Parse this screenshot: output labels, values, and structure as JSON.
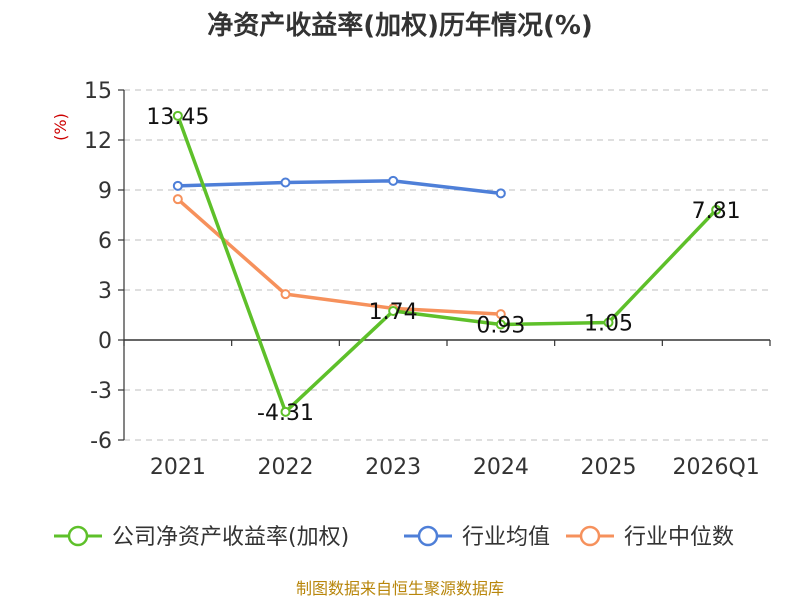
{
  "chart_data": {
    "type": "line",
    "title": "净资产收益率(加权)历年情况(%)",
    "ylabel": "(%)",
    "categories": [
      "2021",
      "2022",
      "2023",
      "2024",
      "2025",
      "2026Q1"
    ],
    "ylim": [
      -6,
      15
    ],
    "yticks": [
      15,
      12,
      9,
      6,
      3,
      0,
      -3,
      -6
    ],
    "grid": true,
    "legend_position": "bottom",
    "series": [
      {
        "name": "公司净资产收益率(加权)",
        "color": "#5ec02a",
        "values": [
          13.45,
          -4.31,
          1.74,
          0.93,
          1.05,
          7.81
        ],
        "labels": [
          "13.45",
          "-4.31",
          "1.74",
          "0.93",
          "1.05",
          "7.81"
        ]
      },
      {
        "name": "行业均值",
        "color": "#4e7fd8",
        "values": [
          9.25,
          9.45,
          9.55,
          8.8,
          null,
          null
        ]
      },
      {
        "name": "行业中位数",
        "color": "#f6915c",
        "values": [
          8.45,
          2.75,
          1.9,
          1.55,
          null,
          null
        ]
      }
    ]
  },
  "source": "制图数据来自恒生聚源数据库"
}
